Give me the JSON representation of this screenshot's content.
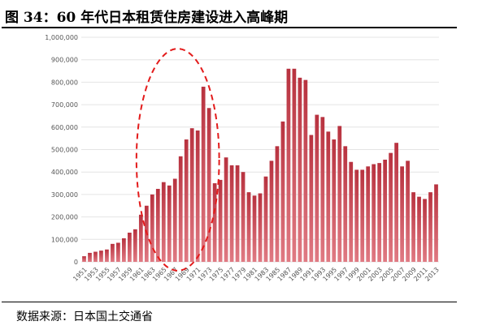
{
  "figure": {
    "title": "图 34：60 年代日本租赁住房建设进入高峰期",
    "source": "数据来源：日本国土交通省"
  },
  "colors": {
    "bar": "#c94a55",
    "bar_dark": "#9f2c38",
    "ellipse": "#e31b1b"
  },
  "chart_data": {
    "type": "bar",
    "title": "",
    "xlabel": "",
    "ylabel": "",
    "ylim": [
      0,
      1000000
    ],
    "yticks": [
      "1,000,000",
      "900,000",
      "800,000",
      "700,000",
      "600,000",
      "500,000",
      "400,000",
      "300,000",
      "200,000",
      "100,000",
      "0"
    ],
    "xtick_labels": [
      "1951",
      "1953",
      "1955",
      "1957",
      "1959",
      "1961",
      "1963",
      "1965",
      "1967",
      "1969",
      "1971",
      "1973",
      "1975",
      "1977",
      "1979",
      "1981",
      "1983",
      "1985",
      "1987",
      "1989",
      "1991",
      "1993",
      "1995",
      "1997",
      "1999",
      "2001",
      "2003",
      "2005",
      "2007",
      "2009",
      "2011",
      "2013"
    ],
    "categories": [
      1951,
      1952,
      1953,
      1954,
      1955,
      1956,
      1957,
      1958,
      1959,
      1960,
      1961,
      1962,
      1963,
      1964,
      1965,
      1966,
      1967,
      1968,
      1969,
      1970,
      1971,
      1972,
      1973,
      1974,
      1975,
      1976,
      1977,
      1978,
      1979,
      1980,
      1981,
      1982,
      1983,
      1984,
      1985,
      1986,
      1987,
      1988,
      1989,
      1990,
      1991,
      1992,
      1993,
      1994,
      1995,
      1996,
      1997,
      1998,
      1999,
      2000,
      2001,
      2002,
      2003,
      2004,
      2005,
      2006,
      2007,
      2008,
      2009,
      2010,
      2011,
      2012,
      2013
    ],
    "values": [
      25000,
      40000,
      45000,
      50000,
      55000,
      80000,
      85000,
      105000,
      130000,
      145000,
      210000,
      250000,
      300000,
      325000,
      355000,
      340000,
      370000,
      470000,
      545000,
      595000,
      585000,
      780000,
      685000,
      350000,
      365000,
      465000,
      430000,
      430000,
      400000,
      310000,
      295000,
      305000,
      380000,
      450000,
      515000,
      625000,
      860000,
      860000,
      820000,
      810000,
      565000,
      655000,
      645000,
      580000,
      545000,
      605000,
      515000,
      445000,
      410000,
      410000,
      425000,
      435000,
      440000,
      455000,
      485000,
      530000,
      425000,
      450000,
      310000,
      290000,
      280000,
      310000,
      345000
    ],
    "grid": true,
    "legend": "none",
    "annotation": "red dashed ellipse highlighting the 1960s peak"
  }
}
